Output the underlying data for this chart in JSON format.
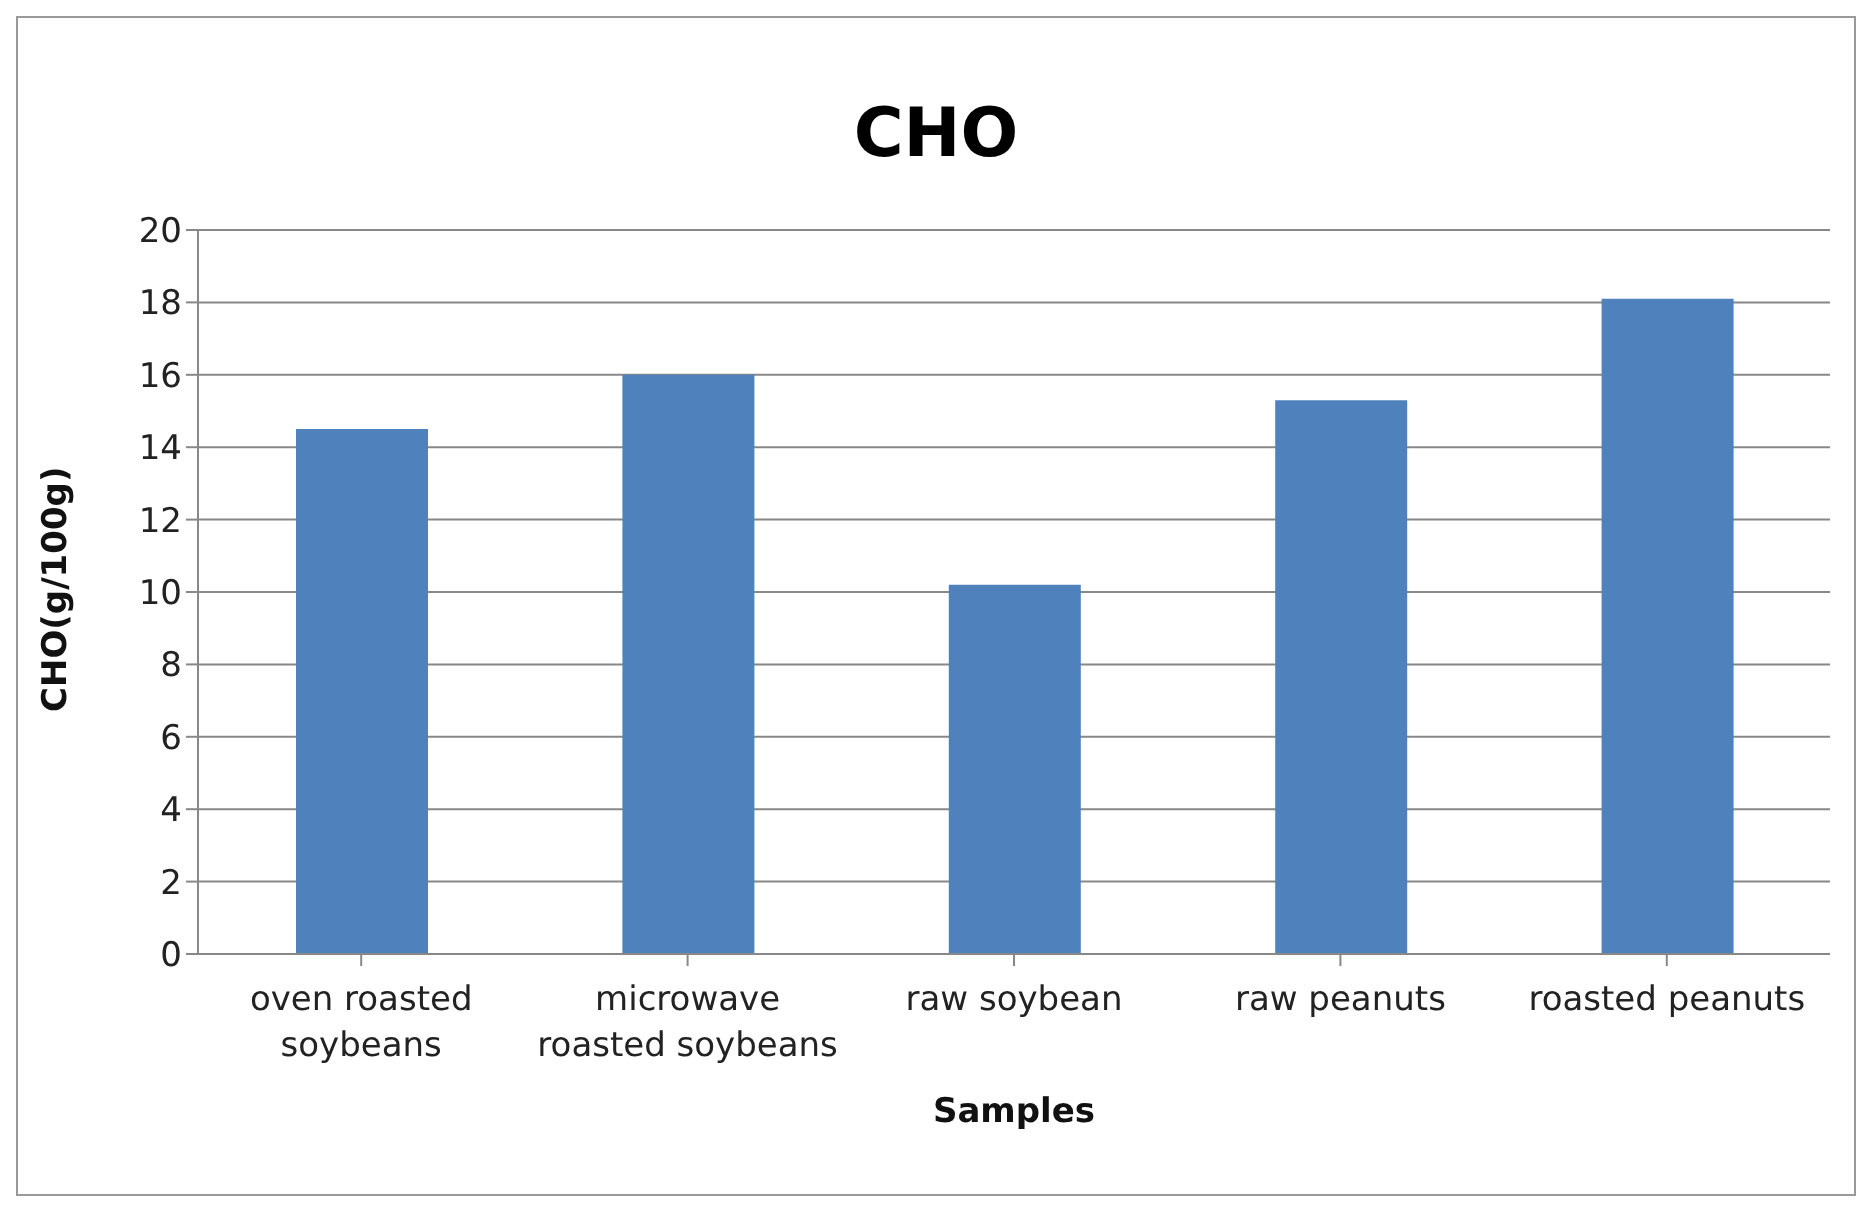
{
  "chart_data": {
    "type": "bar",
    "title": "CHO",
    "xlabel": "Samples",
    "ylabel": "CHO(g/100g)",
    "categories": [
      "oven roasted soybeans",
      "microwave roasted soybeans",
      "raw soybean",
      "raw peanuts",
      "roasted peanuts"
    ],
    "values": [
      14.5,
      16,
      10.2,
      15.3,
      18.1
    ],
    "color": "#4f81bd",
    "ylim": [
      0,
      20
    ],
    "yticks": [
      0,
      2,
      4,
      6,
      8,
      10,
      12,
      14,
      16,
      18,
      20
    ],
    "grid": "y",
    "legend": false
  }
}
